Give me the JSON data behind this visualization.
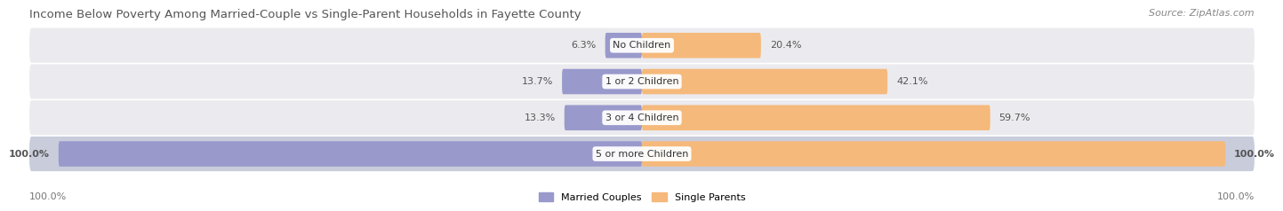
{
  "title": "Income Below Poverty Among Married-Couple vs Single-Parent Households in Fayette County",
  "source": "Source: ZipAtlas.com",
  "categories": [
    "No Children",
    "1 or 2 Children",
    "3 or 4 Children",
    "5 or more Children"
  ],
  "married_values": [
    6.3,
    13.7,
    13.3,
    100.0
  ],
  "single_values": [
    20.4,
    42.1,
    59.7,
    100.0
  ],
  "married_color": "#9999cc",
  "single_color": "#f5b97b",
  "row_bg_light": "#ebebef",
  "row_bg_dark": "#c8ccdb",
  "title_color": "#555555",
  "value_color": "#555555",
  "legend_married": "Married Couples",
  "legend_single": "Single Parents",
  "max_value": 100.0,
  "background_color": "#ffffff",
  "title_fontsize": 9.5,
  "source_fontsize": 8,
  "cat_fontsize": 8,
  "val_fontsize": 8,
  "legend_fontsize": 8
}
